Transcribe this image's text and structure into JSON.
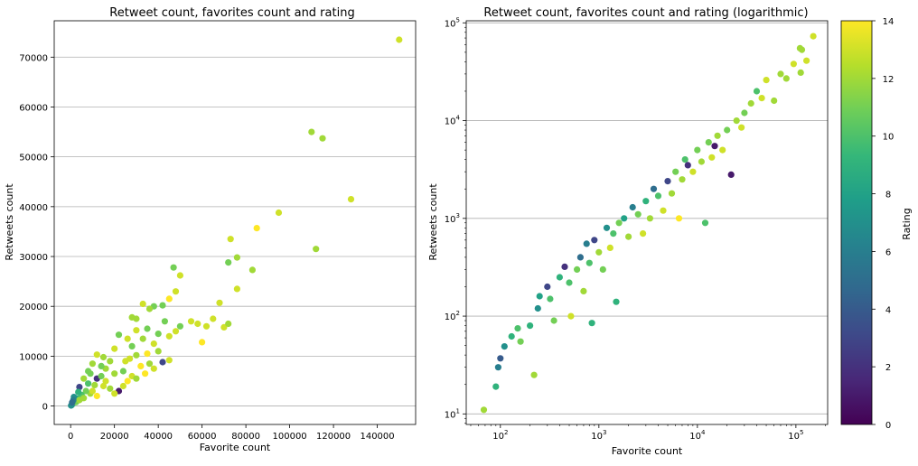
{
  "chart_data": [
    {
      "type": "scatter",
      "title": "Retweet count, favorites count and rating",
      "xlabel": "Favorite count",
      "ylabel": "Retweets count",
      "x_scale": "linear",
      "y_scale": "linear",
      "xlim": [
        -7500,
        157500
      ],
      "ylim": [
        -3700,
        77300
      ],
      "xticks": [
        0,
        20000,
        40000,
        60000,
        80000,
        100000,
        120000,
        140000
      ],
      "xtick_labels": [
        "0",
        "20000",
        "40000",
        "60000",
        "80000",
        "100000",
        "120000",
        "140000"
      ],
      "yticks": [
        0,
        10000,
        20000,
        30000,
        40000,
        50000,
        60000,
        70000
      ],
      "ytick_labels": [
        "0",
        "10000",
        "20000",
        "30000",
        "40000",
        "50000",
        "60000",
        "70000"
      ],
      "grid": "horizontal",
      "color_by": "rating",
      "points": [
        {
          "x": 150000,
          "y": 73500,
          "rating": 13
        },
        {
          "x": 110000,
          "y": 55000,
          "rating": 12
        },
        {
          "x": 115000,
          "y": 53700,
          "rating": 12
        },
        {
          "x": 128000,
          "y": 41500,
          "rating": 13
        },
        {
          "x": 112000,
          "y": 31500,
          "rating": 12
        },
        {
          "x": 95000,
          "y": 38800,
          "rating": 13
        },
        {
          "x": 85000,
          "y": 35700,
          "rating": 14
        },
        {
          "x": 73000,
          "y": 33500,
          "rating": 13
        },
        {
          "x": 72000,
          "y": 28800,
          "rating": 11
        },
        {
          "x": 76000,
          "y": 29800,
          "rating": 12
        },
        {
          "x": 83000,
          "y": 27300,
          "rating": 12
        },
        {
          "x": 76000,
          "y": 23500,
          "rating": 13
        },
        {
          "x": 47000,
          "y": 27800,
          "rating": 11
        },
        {
          "x": 50000,
          "y": 26200,
          "rating": 13
        },
        {
          "x": 68000,
          "y": 20700,
          "rating": 13
        },
        {
          "x": 48000,
          "y": 23000,
          "rating": 13
        },
        {
          "x": 45000,
          "y": 21500,
          "rating": 14
        },
        {
          "x": 42000,
          "y": 20200,
          "rating": 11
        },
        {
          "x": 38000,
          "y": 20000,
          "rating": 11
        },
        {
          "x": 33000,
          "y": 20500,
          "rating": 13
        },
        {
          "x": 36000,
          "y": 19500,
          "rating": 12
        },
        {
          "x": 28000,
          "y": 17800,
          "rating": 12
        },
        {
          "x": 30000,
          "y": 17500,
          "rating": 12
        },
        {
          "x": 43000,
          "y": 17000,
          "rating": 11
        },
        {
          "x": 50000,
          "y": 16000,
          "rating": 11
        },
        {
          "x": 55000,
          "y": 17000,
          "rating": 13
        },
        {
          "x": 58000,
          "y": 16500,
          "rating": 13
        },
        {
          "x": 62000,
          "y": 16000,
          "rating": 13
        },
        {
          "x": 65000,
          "y": 17500,
          "rating": 13
        },
        {
          "x": 70000,
          "y": 15800,
          "rating": 13
        },
        {
          "x": 72000,
          "y": 16500,
          "rating": 12
        },
        {
          "x": 60000,
          "y": 12800,
          "rating": 14
        },
        {
          "x": 48000,
          "y": 15000,
          "rating": 13
        },
        {
          "x": 45000,
          "y": 14000,
          "rating": 13
        },
        {
          "x": 40000,
          "y": 14500,
          "rating": 11
        },
        {
          "x": 35000,
          "y": 15500,
          "rating": 11
        },
        {
          "x": 30000,
          "y": 15200,
          "rating": 13
        },
        {
          "x": 33000,
          "y": 13500,
          "rating": 12
        },
        {
          "x": 38000,
          "y": 12500,
          "rating": 13
        },
        {
          "x": 40000,
          "y": 11000,
          "rating": 12
        },
        {
          "x": 45000,
          "y": 9200,
          "rating": 13
        },
        {
          "x": 42000,
          "y": 8800,
          "rating": 3
        },
        {
          "x": 35000,
          "y": 10500,
          "rating": 14
        },
        {
          "x": 30000,
          "y": 10200,
          "rating": 12
        },
        {
          "x": 28000,
          "y": 12000,
          "rating": 11
        },
        {
          "x": 26000,
          "y": 13500,
          "rating": 13
        },
        {
          "x": 22000,
          "y": 14300,
          "rating": 11
        },
        {
          "x": 20000,
          "y": 11500,
          "rating": 13
        },
        {
          "x": 12000,
          "y": 10300,
          "rating": 13
        },
        {
          "x": 15000,
          "y": 9800,
          "rating": 12
        },
        {
          "x": 10000,
          "y": 8500,
          "rating": 12
        },
        {
          "x": 18000,
          "y": 9000,
          "rating": 12
        },
        {
          "x": 25000,
          "y": 9000,
          "rating": 13
        },
        {
          "x": 32000,
          "y": 8000,
          "rating": 14
        },
        {
          "x": 38000,
          "y": 7500,
          "rating": 13
        },
        {
          "x": 34000,
          "y": 6500,
          "rating": 14
        },
        {
          "x": 28000,
          "y": 6000,
          "rating": 13
        },
        {
          "x": 24000,
          "y": 7000,
          "rating": 11
        },
        {
          "x": 20000,
          "y": 6500,
          "rating": 12
        },
        {
          "x": 16000,
          "y": 7500,
          "rating": 12
        },
        {
          "x": 12000,
          "y": 5500,
          "rating": 2
        },
        {
          "x": 14000,
          "y": 6000,
          "rating": 11
        },
        {
          "x": 9000,
          "y": 6500,
          "rating": 11
        },
        {
          "x": 6000,
          "y": 5500,
          "rating": 12
        },
        {
          "x": 4000,
          "y": 3800,
          "rating": 3
        },
        {
          "x": 8000,
          "y": 4500,
          "rating": 10
        },
        {
          "x": 11000,
          "y": 4200,
          "rating": 12
        },
        {
          "x": 15000,
          "y": 4000,
          "rating": 13
        },
        {
          "x": 18000,
          "y": 3500,
          "rating": 12
        },
        {
          "x": 22000,
          "y": 3000,
          "rating": 1
        },
        {
          "x": 20000,
          "y": 2500,
          "rating": 13
        },
        {
          "x": 26000,
          "y": 5000,
          "rating": 14
        },
        {
          "x": 30000,
          "y": 5500,
          "rating": 12
        },
        {
          "x": 12000,
          "y": 2000,
          "rating": 14
        },
        {
          "x": 9000,
          "y": 2500,
          "rating": 12
        },
        {
          "x": 7000,
          "y": 3000,
          "rating": 11
        },
        {
          "x": 5000,
          "y": 2200,
          "rating": 10
        },
        {
          "x": 3000,
          "y": 1500,
          "rating": 9
        },
        {
          "x": 2000,
          "y": 1000,
          "rating": 8
        },
        {
          "x": 1500,
          "y": 1800,
          "rating": 7
        },
        {
          "x": 1000,
          "y": 500,
          "rating": 8
        },
        {
          "x": 500,
          "y": 200,
          "rating": 9
        },
        {
          "x": 200,
          "y": 100,
          "rating": 7
        },
        {
          "x": 2500,
          "y": 800,
          "rating": 11
        },
        {
          "x": 4000,
          "y": 1200,
          "rating": 12
        },
        {
          "x": 6000,
          "y": 1600,
          "rating": 12
        },
        {
          "x": 10000,
          "y": 3000,
          "rating": 13
        },
        {
          "x": 16000,
          "y": 5000,
          "rating": 13
        },
        {
          "x": 24000,
          "y": 4000,
          "rating": 13
        },
        {
          "x": 36000,
          "y": 8500,
          "rating": 12
        },
        {
          "x": 27000,
          "y": 9500,
          "rating": 13
        },
        {
          "x": 14000,
          "y": 8000,
          "rating": 11
        },
        {
          "x": 8000,
          "y": 7000,
          "rating": 11
        },
        {
          "x": 3500,
          "y": 2800,
          "rating": 9
        },
        {
          "x": 1200,
          "y": 1200,
          "rating": 6
        },
        {
          "x": 700,
          "y": 700,
          "rating": 5
        }
      ]
    },
    {
      "type": "scatter",
      "title": "Retweet count, favorites count and rating (logarithmic)",
      "xlabel": "Favorite count",
      "ylabel": "Retweets count",
      "x_scale": "log",
      "y_scale": "log",
      "xlim": [
        45,
        210000
      ],
      "ylim": [
        7.8,
        105000
      ],
      "xticks": [
        100,
        1000,
        10000,
        100000
      ],
      "xtick_labels": [
        {
          "base": "10",
          "exp": "2"
        },
        {
          "base": "10",
          "exp": "3"
        },
        {
          "base": "10",
          "exp": "4"
        },
        {
          "base": "10",
          "exp": "5"
        }
      ],
      "yticks": [
        10,
        100,
        1000,
        10000,
        100000
      ],
      "ytick_labels": [
        {
          "base": "10",
          "exp": "1"
        },
        {
          "base": "10",
          "exp": "2"
        },
        {
          "base": "10",
          "exp": "3"
        },
        {
          "base": "10",
          "exp": "4"
        },
        {
          "base": "10",
          "exp": "5"
        }
      ],
      "grid": "horizontal",
      "color_by": "rating",
      "points": [
        {
          "x": 68,
          "y": 11,
          "rating": 12
        },
        {
          "x": 90,
          "y": 19,
          "rating": 9
        },
        {
          "x": 95,
          "y": 30,
          "rating": 6
        },
        {
          "x": 100,
          "y": 37,
          "rating": 4
        },
        {
          "x": 110,
          "y": 49,
          "rating": 7
        },
        {
          "x": 130,
          "y": 62,
          "rating": 9
        },
        {
          "x": 150,
          "y": 75,
          "rating": 10
        },
        {
          "x": 160,
          "y": 55,
          "rating": 11
        },
        {
          "x": 200,
          "y": 80,
          "rating": 9
        },
        {
          "x": 220,
          "y": 25,
          "rating": 12
        },
        {
          "x": 240,
          "y": 120,
          "rating": 7
        },
        {
          "x": 250,
          "y": 160,
          "rating": 8
        },
        {
          "x": 300,
          "y": 200,
          "rating": 3
        },
        {
          "x": 320,
          "y": 150,
          "rating": 10
        },
        {
          "x": 350,
          "y": 90,
          "rating": 11
        },
        {
          "x": 400,
          "y": 250,
          "rating": 9
        },
        {
          "x": 450,
          "y": 320,
          "rating": 2
        },
        {
          "x": 500,
          "y": 220,
          "rating": 10
        },
        {
          "x": 520,
          "y": 100,
          "rating": 13
        },
        {
          "x": 600,
          "y": 300,
          "rating": 11
        },
        {
          "x": 650,
          "y": 400,
          "rating": 5
        },
        {
          "x": 700,
          "y": 180,
          "rating": 12
        },
        {
          "x": 750,
          "y": 550,
          "rating": 6
        },
        {
          "x": 800,
          "y": 350,
          "rating": 10
        },
        {
          "x": 850,
          "y": 85,
          "rating": 9
        },
        {
          "x": 900,
          "y": 600,
          "rating": 3
        },
        {
          "x": 1000,
          "y": 450,
          "rating": 12
        },
        {
          "x": 1100,
          "y": 300,
          "rating": 11
        },
        {
          "x": 1200,
          "y": 800,
          "rating": 7
        },
        {
          "x": 1300,
          "y": 500,
          "rating": 13
        },
        {
          "x": 1400,
          "y": 700,
          "rating": 10
        },
        {
          "x": 1500,
          "y": 140,
          "rating": 9
        },
        {
          "x": 1600,
          "y": 900,
          "rating": 11
        },
        {
          "x": 1800,
          "y": 1000,
          "rating": 8
        },
        {
          "x": 2000,
          "y": 650,
          "rating": 12
        },
        {
          "x": 2200,
          "y": 1300,
          "rating": 6
        },
        {
          "x": 2500,
          "y": 1100,
          "rating": 11
        },
        {
          "x": 2800,
          "y": 700,
          "rating": 13
        },
        {
          "x": 3000,
          "y": 1500,
          "rating": 9
        },
        {
          "x": 3300,
          "y": 1000,
          "rating": 12
        },
        {
          "x": 3600,
          "y": 2000,
          "rating": 5
        },
        {
          "x": 4000,
          "y": 1700,
          "rating": 10
        },
        {
          "x": 4500,
          "y": 1200,
          "rating": 13
        },
        {
          "x": 5000,
          "y": 2400,
          "rating": 3
        },
        {
          "x": 5500,
          "y": 1800,
          "rating": 12
        },
        {
          "x": 6000,
          "y": 3000,
          "rating": 11
        },
        {
          "x": 6500,
          "y": 1000,
          "rating": 14
        },
        {
          "x": 7000,
          "y": 2500,
          "rating": 12
        },
        {
          "x": 7500,
          "y": 4000,
          "rating": 10
        },
        {
          "x": 8000,
          "y": 3500,
          "rating": 2
        },
        {
          "x": 9000,
          "y": 3000,
          "rating": 13
        },
        {
          "x": 10000,
          "y": 5000,
          "rating": 11
        },
        {
          "x": 11000,
          "y": 3800,
          "rating": 12
        },
        {
          "x": 12000,
          "y": 900,
          "rating": 10
        },
        {
          "x": 13000,
          "y": 6000,
          "rating": 11
        },
        {
          "x": 14000,
          "y": 4200,
          "rating": 13
        },
        {
          "x": 15000,
          "y": 5500,
          "rating": 1
        },
        {
          "x": 16000,
          "y": 7000,
          "rating": 12
        },
        {
          "x": 18000,
          "y": 5000,
          "rating": 13
        },
        {
          "x": 20000,
          "y": 8000,
          "rating": 11
        },
        {
          "x": 22000,
          "y": 2800,
          "rating": 1
        },
        {
          "x": 25000,
          "y": 10000,
          "rating": 12
        },
        {
          "x": 28000,
          "y": 8500,
          "rating": 13
        },
        {
          "x": 30000,
          "y": 12000,
          "rating": 11
        },
        {
          "x": 35000,
          "y": 15000,
          "rating": 12
        },
        {
          "x": 40000,
          "y": 20000,
          "rating": 10
        },
        {
          "x": 45000,
          "y": 17000,
          "rating": 13
        },
        {
          "x": 50000,
          "y": 26000,
          "rating": 13
        },
        {
          "x": 60000,
          "y": 16000,
          "rating": 12
        },
        {
          "x": 70000,
          "y": 30000,
          "rating": 12
        },
        {
          "x": 80000,
          "y": 27000,
          "rating": 12
        },
        {
          "x": 95000,
          "y": 38000,
          "rating": 13
        },
        {
          "x": 110000,
          "y": 55000,
          "rating": 12
        },
        {
          "x": 115000,
          "y": 53000,
          "rating": 12
        },
        {
          "x": 112000,
          "y": 31000,
          "rating": 12
        },
        {
          "x": 128000,
          "y": 41000,
          "rating": 13
        },
        {
          "x": 150000,
          "y": 73000,
          "rating": 13
        }
      ]
    }
  ],
  "colorbar": {
    "label": "Rating",
    "min": 0,
    "max": 14,
    "ticks": [
      "0",
      "2",
      "4",
      "6",
      "8",
      "10",
      "12",
      "14"
    ],
    "colormap": "viridis",
    "colormap_stops": [
      "#440154",
      "#482878",
      "#3e4989",
      "#31688e",
      "#26828e",
      "#1f9e89",
      "#35b779",
      "#6ece58",
      "#b5de2b",
      "#fde725"
    ]
  }
}
